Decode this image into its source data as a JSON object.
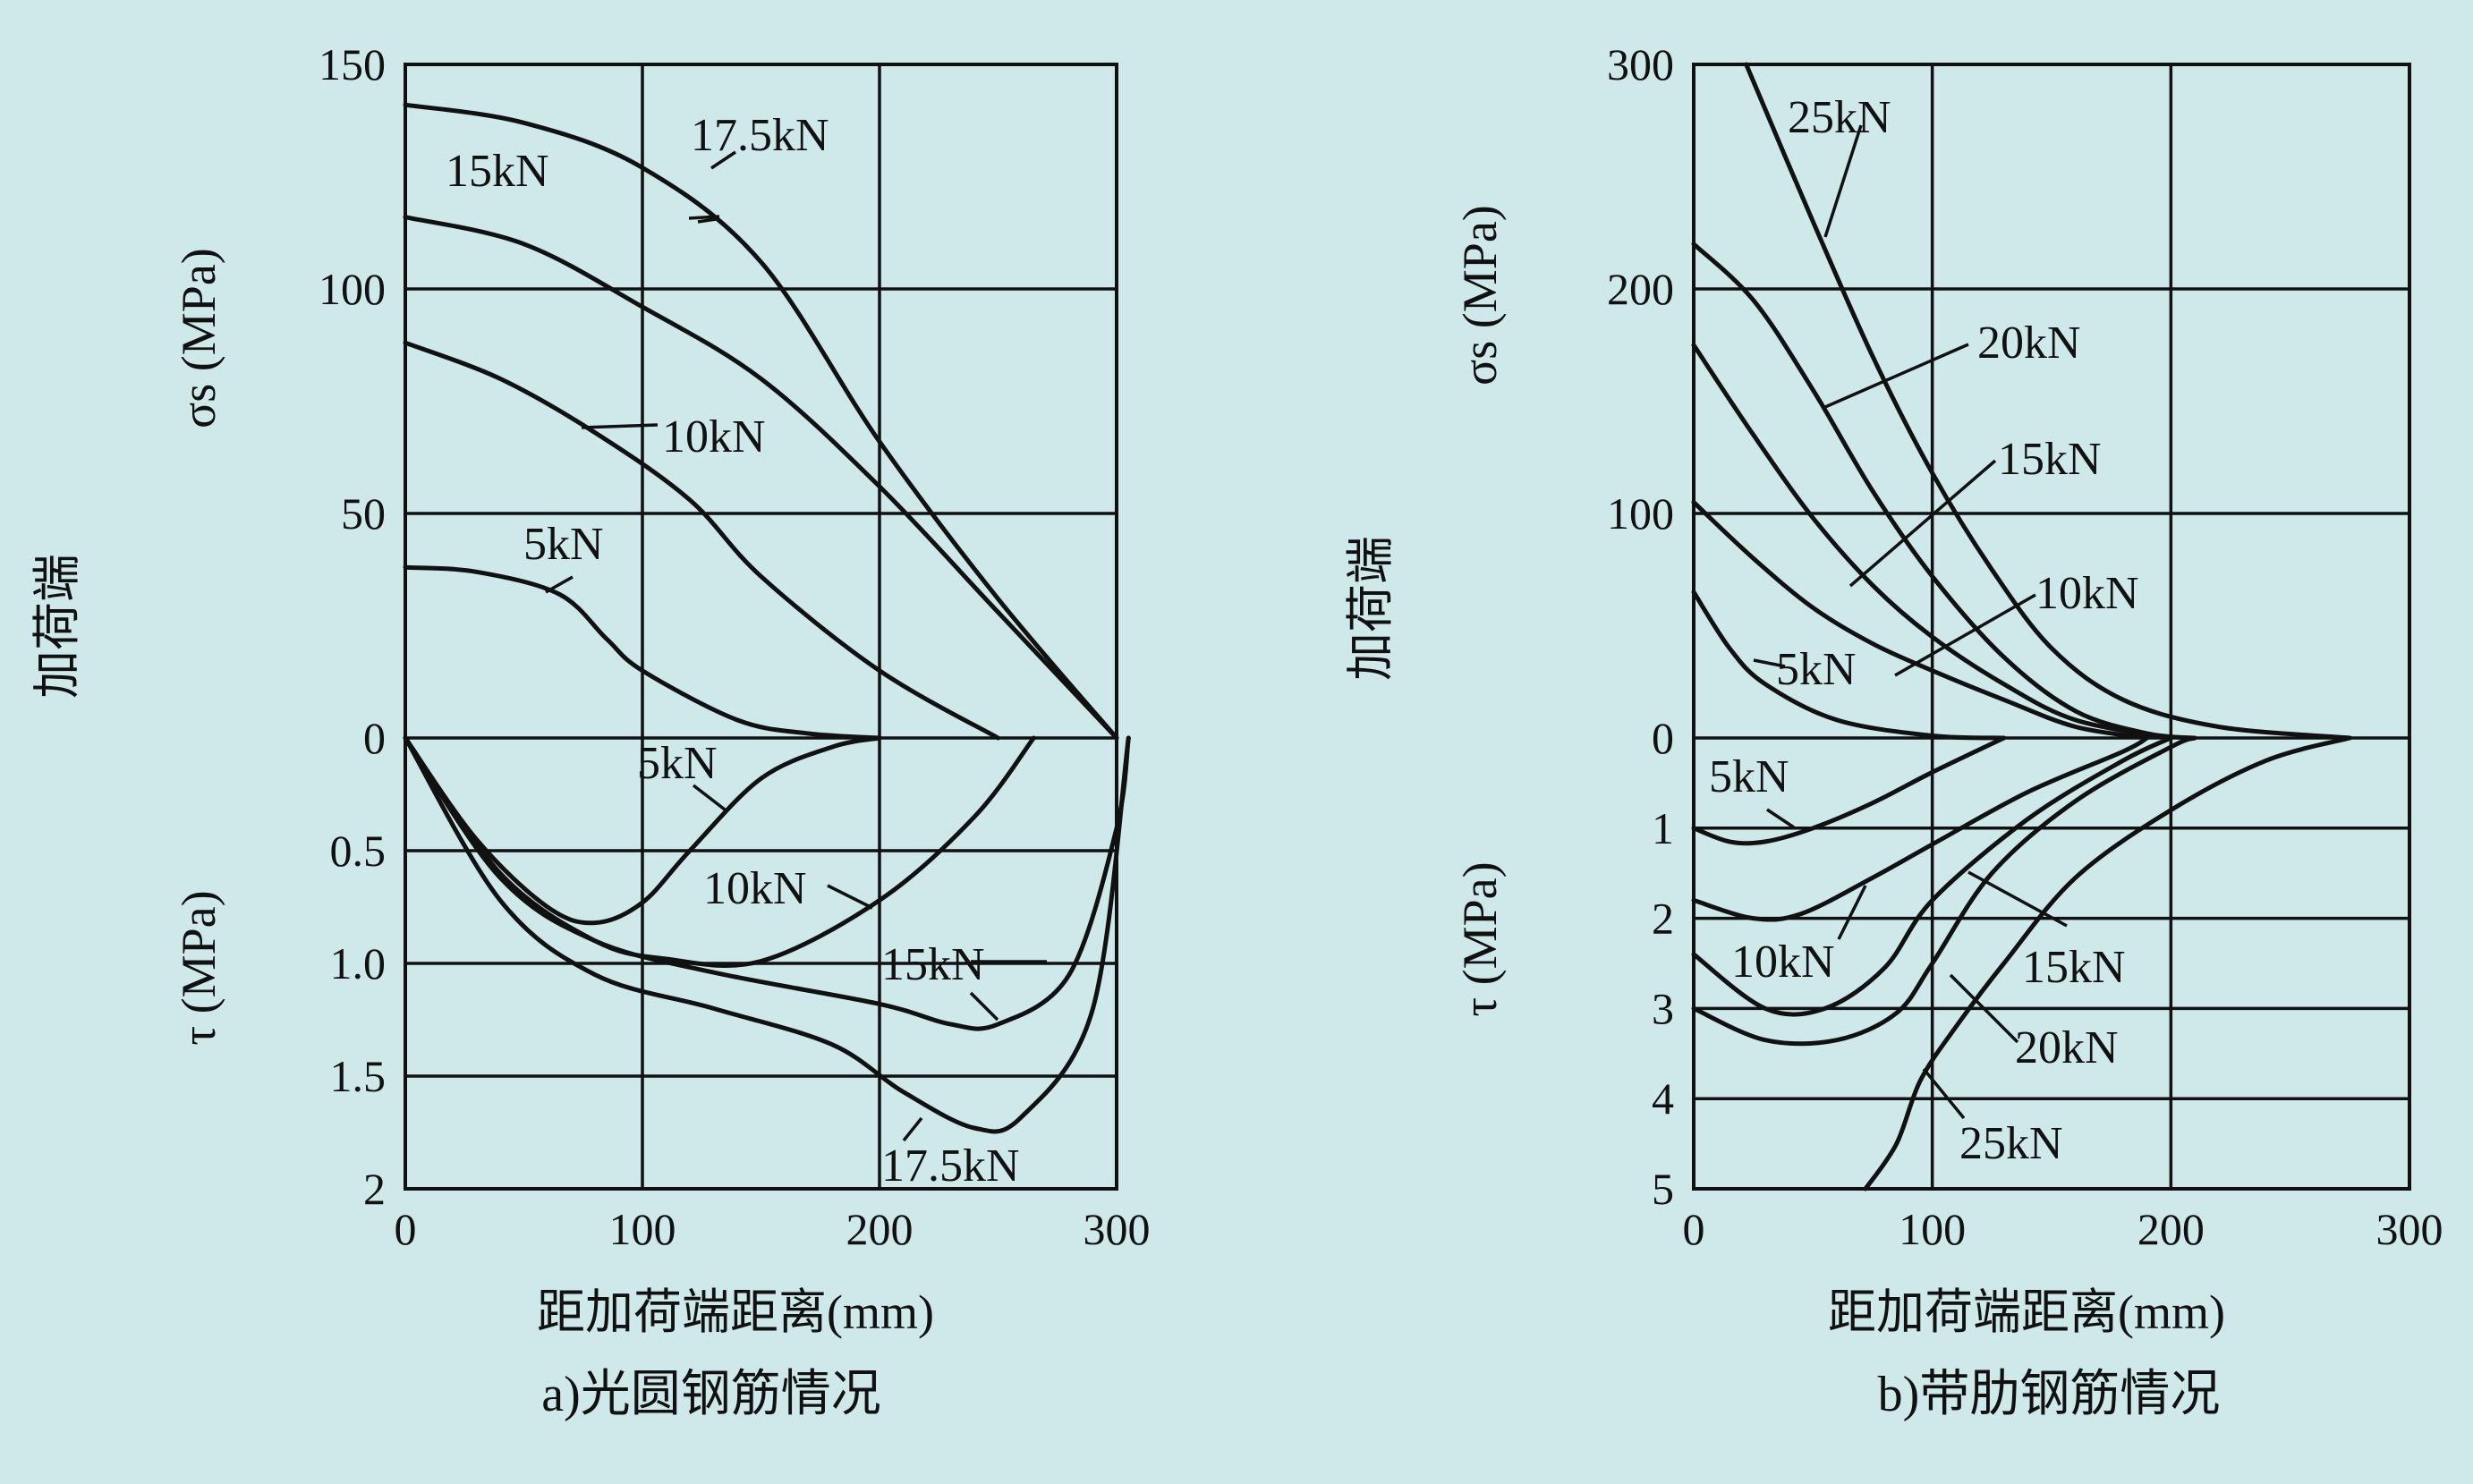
{
  "colors": {
    "background": "#cfe9ea",
    "ink": "#111111"
  },
  "chart_data": [
    {
      "type": "line",
      "caption": "a)光圆钢筋情况",
      "xlabel": "距加荷端距离(mm)",
      "side_label": "加荷端",
      "sigma_label": "σs (MPa)",
      "tau_label": "τ (MPa)",
      "xlim": [
        0,
        300
      ],
      "x_ticks": [
        "0",
        "100",
        "200",
        "300"
      ],
      "sigma_lim": [
        0,
        150
      ],
      "sigma_ticks": [
        "0",
        "50",
        "100",
        "150"
      ],
      "tau_lim": [
        0,
        2
      ],
      "tau_ticks": [
        "0.5",
        "1.0",
        "1.5",
        "2"
      ],
      "grid": true,
      "sigma_series": [
        {
          "name": "17.5kN",
          "points": [
            [
              0,
              141
            ],
            [
              50,
              137
            ],
            [
              100,
              127
            ],
            [
              150,
              106
            ],
            [
              200,
              66
            ],
            [
              250,
              31
            ],
            [
              300,
              0
            ]
          ]
        },
        {
          "name": "15kN",
          "points": [
            [
              0,
              116
            ],
            [
              50,
              110
            ],
            [
              100,
              96
            ],
            [
              150,
              80
            ],
            [
              200,
              56
            ],
            [
              250,
              28
            ],
            [
              300,
              0
            ]
          ]
        },
        {
          "name": "10kN",
          "points": [
            [
              0,
              88
            ],
            [
              40,
              80
            ],
            [
              80,
              68
            ],
            [
              120,
              53
            ],
            [
              150,
              36
            ],
            [
              200,
              15
            ],
            [
              250,
              0
            ]
          ]
        },
        {
          "name": "5kN",
          "points": [
            [
              0,
              38
            ],
            [
              30,
              37
            ],
            [
              65,
              32
            ],
            [
              85,
              22
            ],
            [
              100,
              15
            ],
            [
              140,
              4
            ],
            [
              170,
              1
            ],
            [
              200,
              0
            ]
          ]
        }
      ],
      "tau_series": [
        {
          "name": "5kN",
          "points": [
            [
              0,
              0
            ],
            [
              30,
              0.45
            ],
            [
              60,
              0.75
            ],
            [
              80,
              0.82
            ],
            [
              100,
              0.73
            ],
            [
              120,
              0.5
            ],
            [
              150,
              0.18
            ],
            [
              180,
              0.04
            ],
            [
              200,
              0
            ]
          ]
        },
        {
          "name": "10kN",
          "points": [
            [
              0,
              0
            ],
            [
              40,
              0.6
            ],
            [
              80,
              0.9
            ],
            [
              110,
              0.98
            ],
            [
              150,
              0.99
            ],
            [
              200,
              0.72
            ],
            [
              240,
              0.35
            ],
            [
              265,
              0
            ]
          ]
        },
        {
          "name": "15kN",
          "points": [
            [
              0,
              0
            ],
            [
              40,
              0.62
            ],
            [
              80,
              0.9
            ],
            [
              130,
              1.04
            ],
            [
              200,
              1.18
            ],
            [
              230,
              1.27
            ],
            [
              250,
              1.27
            ],
            [
              280,
              1.05
            ],
            [
              300,
              0.4
            ],
            [
              305,
              0
            ]
          ]
        },
        {
          "name": "17.5kN",
          "points": [
            [
              0,
              0
            ],
            [
              40,
              0.72
            ],
            [
              80,
              1.05
            ],
            [
              130,
              1.2
            ],
            [
              180,
              1.36
            ],
            [
              210,
              1.57
            ],
            [
              240,
              1.73
            ],
            [
              260,
              1.68
            ],
            [
              290,
              1.2
            ],
            [
              305,
              0
            ]
          ]
        }
      ],
      "labels": [
        "17.5kN",
        "15kN",
        "10kN",
        "5kN",
        "5kN",
        "10kN",
        "15kN",
        "17.5kN"
      ]
    },
    {
      "type": "line",
      "caption": "b)带肋钢筋情况",
      "xlabel": "距加荷端距离(mm)",
      "side_label": "加荷端",
      "sigma_label": "σs (MPa)",
      "tau_label": "τ (MPa)",
      "xlim": [
        0,
        300
      ],
      "x_ticks": [
        "0",
        "100",
        "200",
        "300"
      ],
      "sigma_lim": [
        0,
        300
      ],
      "sigma_ticks": [
        "0",
        "100",
        "200",
        "300"
      ],
      "tau_lim": [
        0,
        5
      ],
      "tau_ticks": [
        "1",
        "2",
        "3",
        "4",
        "5"
      ],
      "grid": true,
      "sigma_series": [
        {
          "name": "25kN",
          "points": [
            [
              22,
              300
            ],
            [
              50,
              230
            ],
            [
              75,
              170
            ],
            [
              100,
              118
            ],
            [
              125,
              75
            ],
            [
              150,
              40
            ],
            [
              180,
              17
            ],
            [
              220,
              5
            ],
            [
              275,
              0
            ]
          ]
        },
        {
          "name": "20kN",
          "points": [
            [
              0,
              220
            ],
            [
              25,
              195
            ],
            [
              50,
              155
            ],
            [
              75,
              110
            ],
            [
              100,
              72
            ],
            [
              130,
              36
            ],
            [
              160,
              12
            ],
            [
              190,
              2
            ],
            [
              210,
              0
            ]
          ]
        },
        {
          "name": "15kN",
          "points": [
            [
              0,
              175
            ],
            [
              25,
              135
            ],
            [
              50,
              98
            ],
            [
              75,
              68
            ],
            [
              100,
              45
            ],
            [
              130,
              24
            ],
            [
              160,
              8
            ],
            [
              200,
              0
            ]
          ]
        },
        {
          "name": "10kN",
          "points": [
            [
              0,
              105
            ],
            [
              25,
              80
            ],
            [
              50,
              58
            ],
            [
              75,
              42
            ],
            [
              100,
              30
            ],
            [
              130,
              17
            ],
            [
              160,
              5
            ],
            [
              190,
              0
            ]
          ]
        },
        {
          "name": "5kN",
          "points": [
            [
              0,
              65
            ],
            [
              15,
              40
            ],
            [
              30,
              24
            ],
            [
              60,
              8
            ],
            [
              100,
              1
            ],
            [
              130,
              0
            ]
          ]
        }
      ],
      "tau_series": [
        {
          "name": "5kN",
          "points": [
            [
              0,
              1.0
            ],
            [
              15,
              1.15
            ],
            [
              30,
              1.15
            ],
            [
              50,
              1.0
            ],
            [
              75,
              0.72
            ],
            [
              100,
              0.38
            ],
            [
              130,
              0
            ]
          ]
        },
        {
          "name": "10kN",
          "points": [
            [
              0,
              1.8
            ],
            [
              25,
              2.0
            ],
            [
              45,
              1.95
            ],
            [
              75,
              1.55
            ],
            [
              100,
              1.18
            ],
            [
              140,
              0.6
            ],
            [
              180,
              0.15
            ],
            [
              190,
              0
            ]
          ]
        },
        {
          "name": "15kN",
          "points": [
            [
              0,
              2.4
            ],
            [
              30,
              3.0
            ],
            [
              55,
              3.0
            ],
            [
              80,
              2.55
            ],
            [
              100,
              1.8
            ],
            [
              140,
              0.9
            ],
            [
              180,
              0.25
            ],
            [
              200,
              0
            ]
          ]
        },
        {
          "name": "20kN",
          "points": [
            [
              0,
              3.0
            ],
            [
              30,
              3.35
            ],
            [
              60,
              3.35
            ],
            [
              85,
              3.05
            ],
            [
              100,
              2.5
            ],
            [
              125,
              1.5
            ],
            [
              160,
              0.7
            ],
            [
              200,
              0.1
            ],
            [
              210,
              0
            ]
          ]
        },
        {
          "name": "25kN",
          "points": [
            [
              72,
              5.0
            ],
            [
              85,
              4.5
            ],
            [
              95,
              3.8
            ],
            [
              110,
              3.2
            ],
            [
              130,
              2.5
            ],
            [
              160,
              1.55
            ],
            [
              200,
              0.8
            ],
            [
              240,
              0.25
            ],
            [
              275,
              0
            ]
          ]
        }
      ],
      "labels": [
        "25kN",
        "20kN",
        "15kN",
        "10kN",
        "5kN",
        "5kN",
        "10kN",
        "15kN",
        "20kN",
        "25kN"
      ]
    }
  ]
}
